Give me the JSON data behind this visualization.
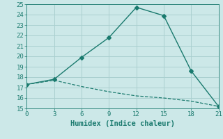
{
  "xlabel": "Humidex (Indice chaleur)",
  "x": [
    0,
    3,
    6,
    9,
    12,
    15,
    18,
    21
  ],
  "line1_y": [
    17.3,
    17.8,
    19.9,
    21.8,
    24.7,
    23.9,
    18.6,
    15.2
  ],
  "line2_y": [
    17.3,
    17.7,
    17.1,
    16.6,
    16.2,
    16.0,
    15.7,
    15.2
  ],
  "line_color": "#1a7a6e",
  "bg_color": "#cce8e8",
  "grid_color": "#aad0d0",
  "xlim": [
    0,
    21
  ],
  "ylim": [
    15,
    25
  ],
  "xticks": [
    0,
    3,
    6,
    9,
    12,
    15,
    18,
    21
  ],
  "yticks": [
    15,
    16,
    17,
    18,
    19,
    20,
    21,
    22,
    23,
    24,
    25
  ],
  "tick_fontsize": 6.5,
  "xlabel_fontsize": 7.5
}
